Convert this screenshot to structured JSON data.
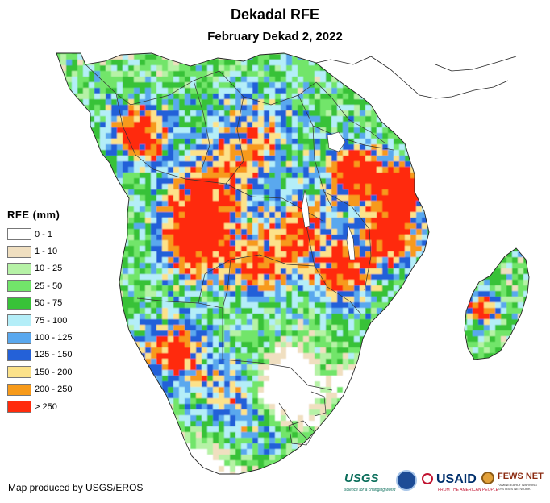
{
  "title": "Dekadal RFE",
  "subtitle": "February Dekad 2, 2022",
  "legend": {
    "title": "RFE (mm)",
    "items": [
      {
        "label": "0 - 1",
        "color": "#ffffff"
      },
      {
        "label": "1 - 10",
        "color": "#f0dfc0"
      },
      {
        "label": "10 - 25",
        "color": "#b6f2a6"
      },
      {
        "label": "25 - 50",
        "color": "#72e56a"
      },
      {
        "label": "50 - 75",
        "color": "#38c238"
      },
      {
        "label": "75 - 100",
        "color": "#b4eef8"
      },
      {
        "label": "100 - 125",
        "color": "#5aa8ee"
      },
      {
        "label": "125 - 150",
        "color": "#2461d8"
      },
      {
        "label": "150 - 200",
        "color": "#fce28a"
      },
      {
        "label": "200 - 250",
        "color": "#f79a1a"
      },
      {
        "label": "> 250",
        "color": "#ff2b0c"
      }
    ]
  },
  "credit": "Map produced by USGS/EROS",
  "logos": {
    "usgs": "USGS",
    "usgs_tagline": "science for a changing world",
    "usaid": "USAID",
    "usaid_tagline": "FROM THE AMERICAN PEOPLE",
    "fews": "FEWS NET",
    "fews_tagline": "FAMINE EARLY WARNING SYSTEMS NETWORK"
  }
}
